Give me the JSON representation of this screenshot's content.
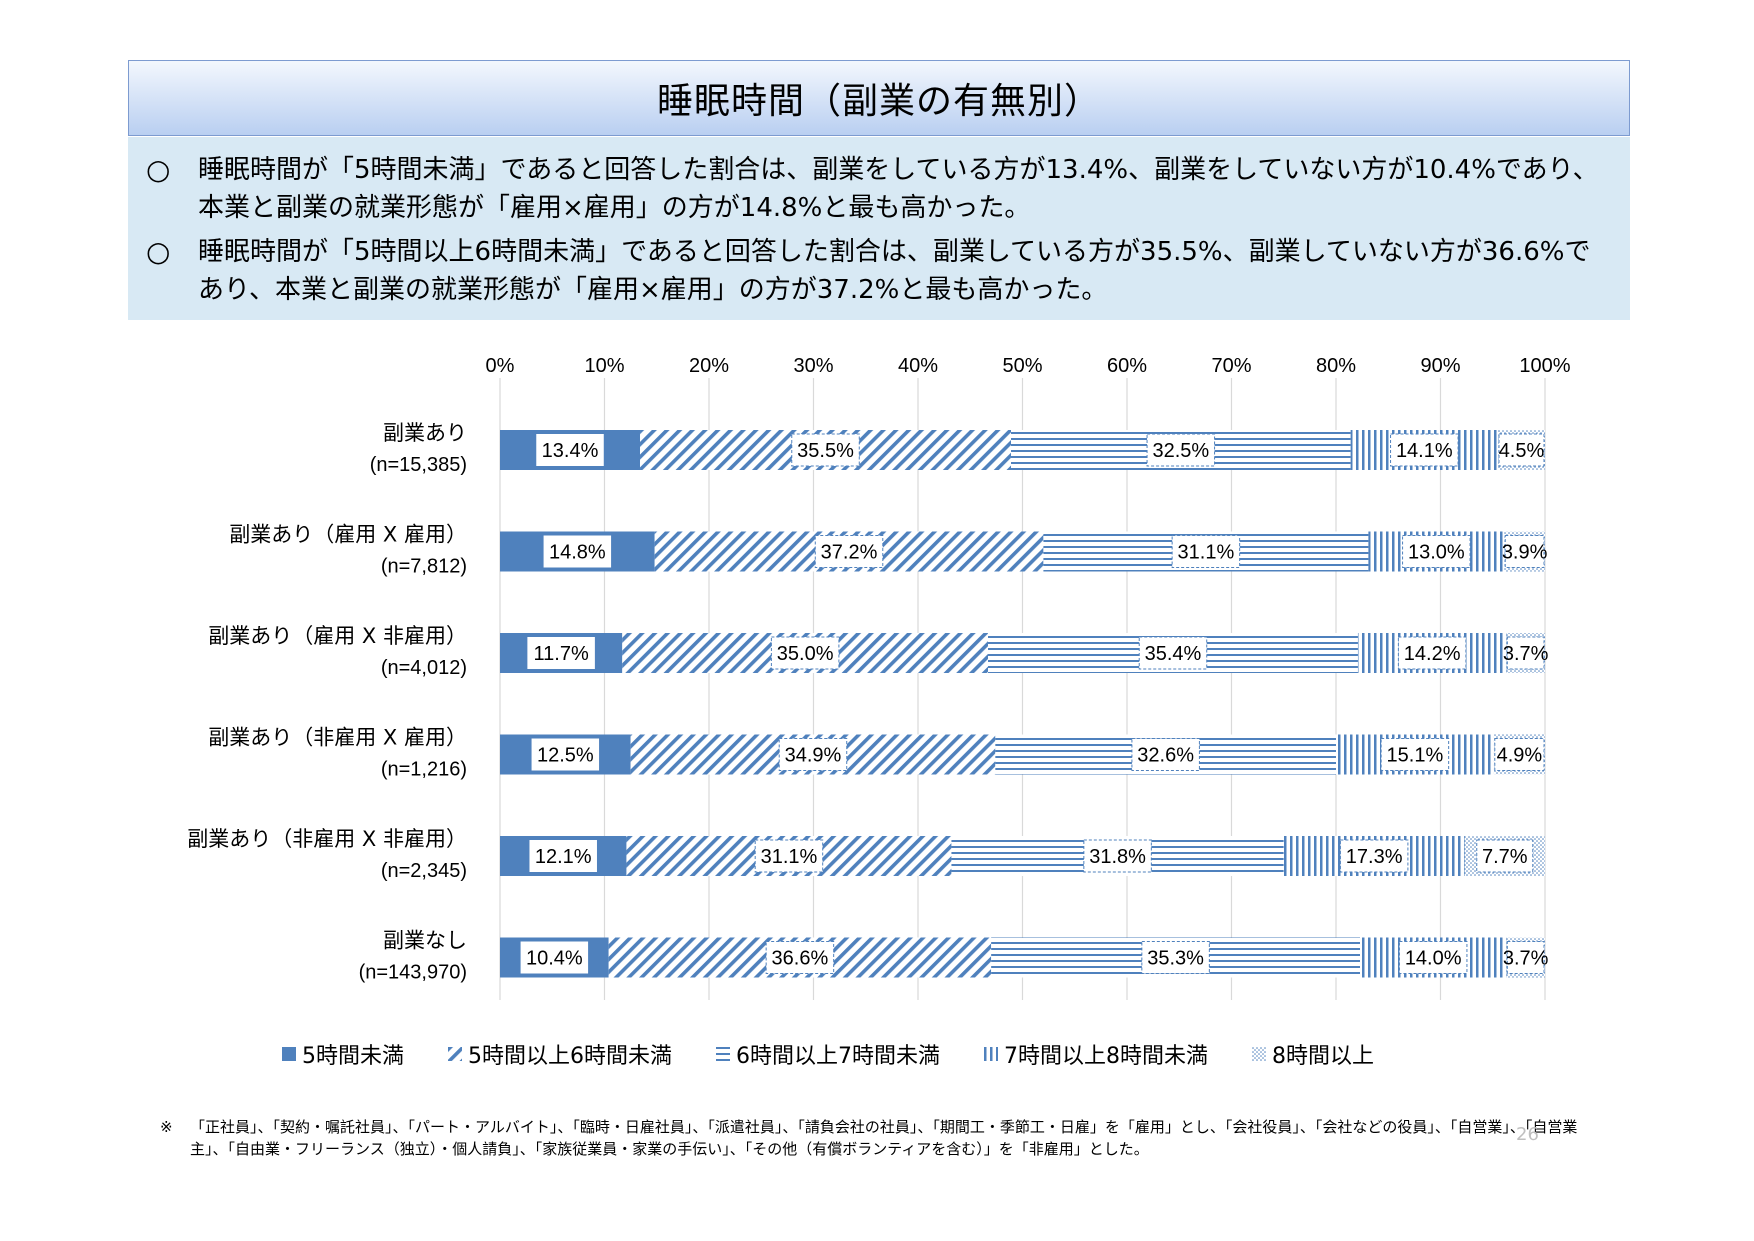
{
  "title": "睡眠時間（副業の有無別）",
  "summary": [
    {
      "mark": "○",
      "text": "睡眠時間が「5時間未満」であると回答した割合は、副業をしている方が13.4%、副業をしていない方が10.4%であり、本業と副業の就業形態が「雇用×雇用」の方が14.8%と最も高かった。"
    },
    {
      "mark": "○",
      "text": "睡眠時間が「5時間以上6時間未満」であると回答した割合は、副業している方が35.5%、副業していない方が36.6%であり、本業と副業の就業形態が「雇用×雇用」の方が37.2%と最も高かった。"
    }
  ],
  "chart_data": {
    "type": "bar",
    "orientation": "horizontal",
    "stacked": "percent",
    "categories": [
      {
        "name": "副業あり",
        "n": "(n=15,385)"
      },
      {
        "name": "副業あり（雇用 X 雇用）",
        "n": "(n=7,812)"
      },
      {
        "name": "副業あり（雇用 X 非雇用）",
        "n": "(n=4,012)"
      },
      {
        "name": "副業あり（非雇用 X 雇用）",
        "n": "(n=1,216)"
      },
      {
        "name": "副業あり（非雇用 X 非雇用）",
        "n": "(n=2,345)"
      },
      {
        "name": "副業なし",
        "n": "(n=143,970)"
      }
    ],
    "series": [
      {
        "name": "5時間未満",
        "pattern": "solid",
        "values": [
          13.4,
          14.8,
          11.7,
          12.5,
          12.1,
          10.4
        ]
      },
      {
        "name": "5時間以上6時間未満",
        "pattern": "diagonal",
        "values": [
          35.5,
          37.2,
          35.0,
          34.9,
          31.1,
          36.6
        ]
      },
      {
        "name": "6時間以上7時間未満",
        "pattern": "horizontal",
        "values": [
          32.5,
          31.1,
          35.4,
          32.6,
          31.8,
          35.3
        ]
      },
      {
        "name": "7時間以上8時間未満",
        "pattern": "vertical",
        "values": [
          14.1,
          13.0,
          14.2,
          15.1,
          17.3,
          14.0
        ]
      },
      {
        "name": "8時間以上",
        "pattern": "dots",
        "values": [
          4.5,
          3.9,
          3.7,
          4.9,
          7.7,
          3.7
        ]
      }
    ],
    "x_ticks": [
      "0%",
      "10%",
      "20%",
      "30%",
      "40%",
      "50%",
      "60%",
      "70%",
      "80%",
      "90%",
      "100%"
    ],
    "xlim": [
      0,
      100
    ],
    "grid": true,
    "axis_position": "top",
    "legend_position": "bottom",
    "color": "#4f81bd"
  },
  "footnote": {
    "mark": "※",
    "text": "「正社員」、「契約・嘱託社員」、「パート・アルバイト」、「臨時・日雇社員」、「派遣社員」、「請負会社の社員」、「期間工・季節工・日雇」を「雇用」とし、「会社役員」、「会社などの役員」、「自営業」、「自営業主」、「自由業・フリーランス（独立）・個人請負」、「家族従業員・家業の手伝い」、「その他（有償ボランティアを含む）」を「非雇用」とした。"
  },
  "page_number": "26"
}
